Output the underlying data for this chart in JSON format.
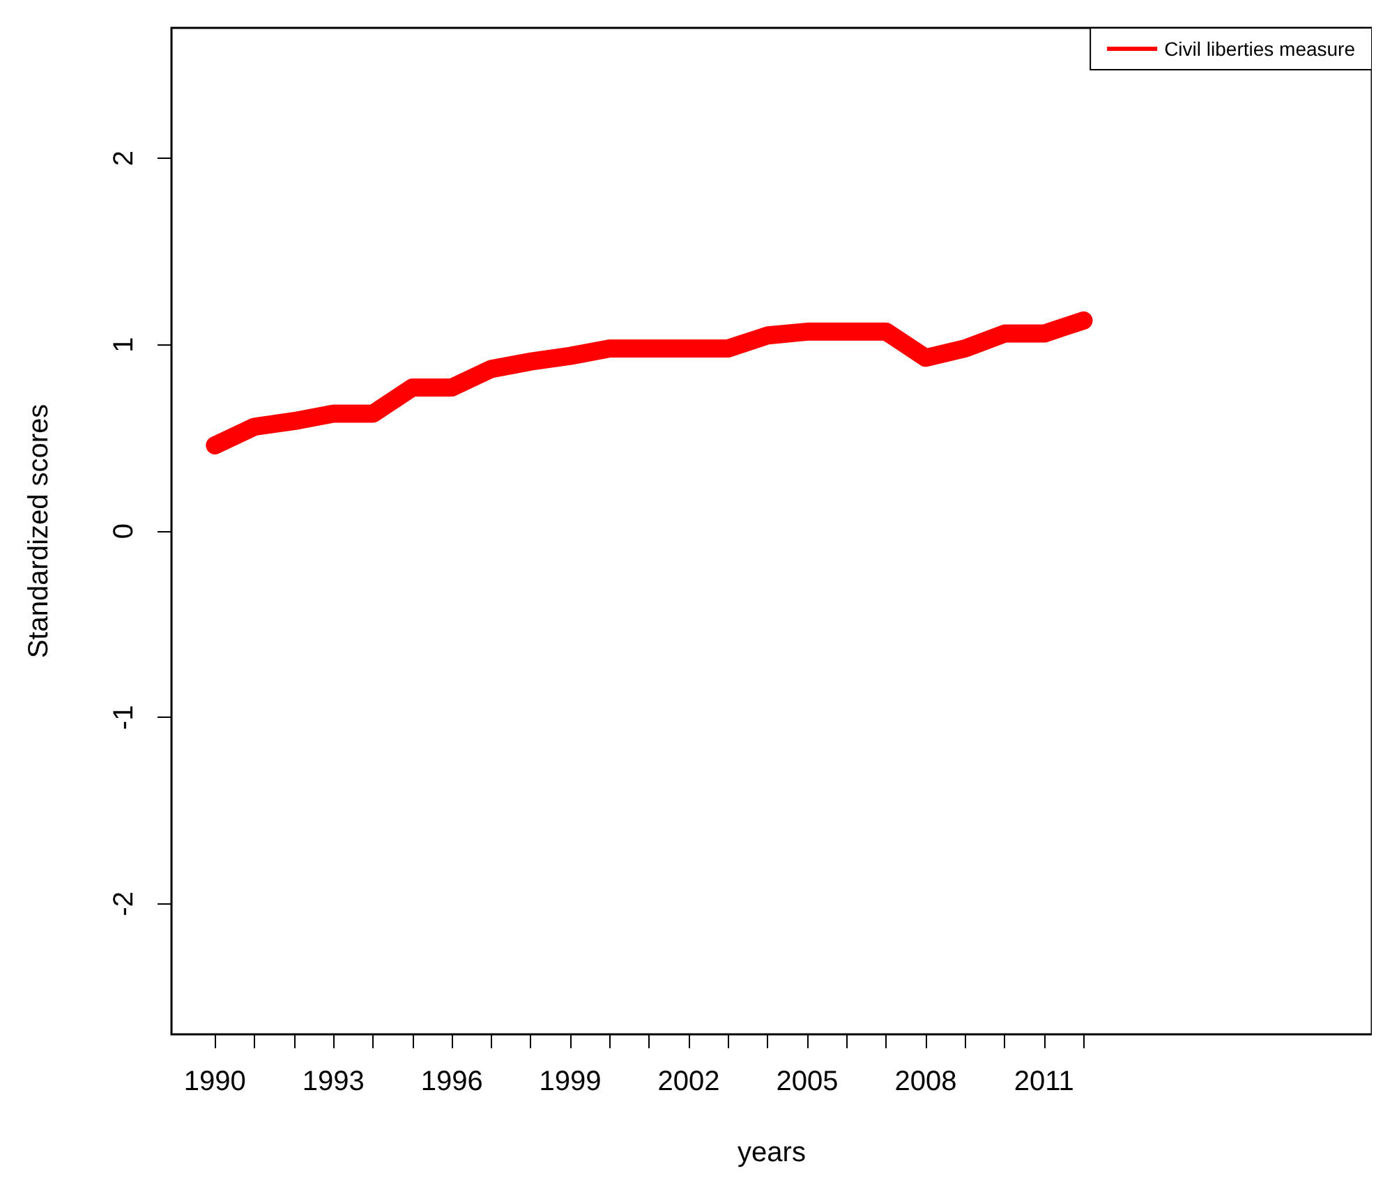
{
  "chart_data": {
    "type": "line",
    "xlabel": "years",
    "ylabel": "Standardized scores",
    "x": [
      1990,
      1991,
      1992,
      1993,
      1994,
      1995,
      1996,
      1997,
      1998,
      1999,
      2000,
      2001,
      2002,
      2003,
      2004,
      2005,
      2006,
      2007,
      2008,
      2009,
      2010,
      2011,
      2012
    ],
    "series": [
      {
        "name": "Civil liberties measure",
        "color": "#ff0000",
        "values": [
          0.46,
          0.56,
          0.59,
          0.63,
          0.63,
          0.77,
          0.77,
          0.87,
          0.91,
          0.94,
          0.98,
          0.98,
          0.98,
          0.98,
          1.05,
          1.07,
          1.07,
          1.07,
          0.93,
          0.98,
          1.06,
          1.06,
          1.13
        ]
      }
    ],
    "xlim": [
      1988.9,
      2019.3
    ],
    "ylim": [
      -2.7,
      2.7
    ],
    "xticks": [
      1990,
      {
        "value": 1991,
        "label": null
      },
      {
        "value": 1992,
        "label": null
      },
      1993,
      {
        "value": 1994,
        "label": null
      },
      {
        "value": 1995,
        "label": null
      },
      1996,
      {
        "value": 1997,
        "label": null
      },
      {
        "value": 1998,
        "label": null
      },
      1999,
      {
        "value": 2000,
        "label": null
      },
      {
        "value": 2001,
        "label": null
      },
      2002,
      {
        "value": 2003,
        "label": null
      },
      {
        "value": 2004,
        "label": null
      },
      2005,
      {
        "value": 2006,
        "label": null
      },
      {
        "value": 2007,
        "label": null
      },
      2008,
      {
        "value": 2009,
        "label": null
      },
      {
        "value": 2010,
        "label": null
      },
      2011,
      {
        "value": 2012,
        "label": null
      }
    ],
    "yticks": [
      -2,
      -1,
      0,
      1,
      2
    ],
    "grid": false,
    "legend": "top right",
    "line_style": "solid"
  }
}
